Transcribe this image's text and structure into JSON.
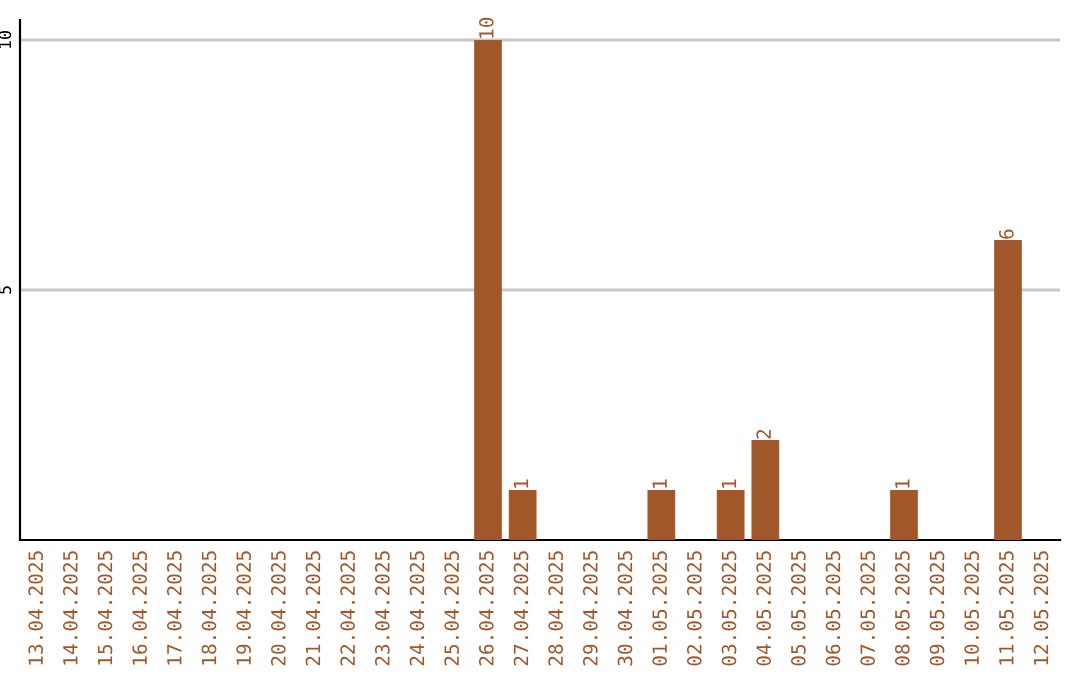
{
  "chart_data": {
    "type": "bar",
    "categories": [
      "13.04.2025",
      "14.04.2025",
      "15.04.2025",
      "16.04.2025",
      "17.04.2025",
      "18.04.2025",
      "19.04.2025",
      "20.04.2025",
      "21.04.2025",
      "22.04.2025",
      "23.04.2025",
      "24.04.2025",
      "25.04.2025",
      "26.04.2025",
      "27.04.2025",
      "28.04.2025",
      "29.04.2025",
      "30.04.2025",
      "01.05.2025",
      "02.05.2025",
      "03.05.2025",
      "04.05.2025",
      "05.05.2025",
      "06.05.2025",
      "07.05.2025",
      "08.05.2025",
      "09.05.2025",
      "10.05.2025",
      "11.05.2025",
      "12.05.2025"
    ],
    "values": [
      0,
      0,
      0,
      0,
      0,
      0,
      0,
      0,
      0,
      0,
      0,
      0,
      0,
      10,
      1,
      0,
      0,
      0,
      1,
      0,
      1,
      2,
      0,
      0,
      0,
      1,
      0,
      0,
      6,
      0
    ],
    "value_labels": [
      null,
      null,
      null,
      null,
      null,
      null,
      null,
      null,
      null,
      null,
      null,
      null,
      null,
      "10",
      "1",
      null,
      null,
      null,
      "1",
      null,
      "1",
      "2",
      null,
      null,
      null,
      "1",
      null,
      null,
      "6",
      null
    ],
    "color": "#a0572a",
    "ylim": [
      0,
      10.4
    ],
    "yticks": [
      5,
      10
    ],
    "grid": "y"
  }
}
